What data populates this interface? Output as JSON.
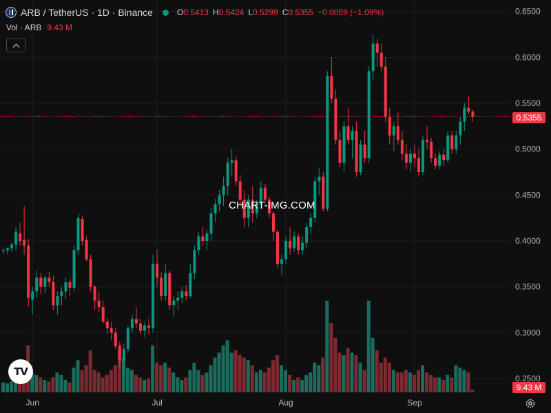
{
  "header": {
    "title": "ARB / TetherUS · 1D · Binance",
    "ohlc": [
      {
        "k": "O",
        "v": "0.5413"
      },
      {
        "k": "H",
        "v": "0.5424"
      },
      {
        "k": "L",
        "v": "0.5299"
      },
      {
        "k": "C",
        "v": "0.5355"
      },
      {
        "k": "",
        "v": "−0.0059 (−1.09%)"
      }
    ]
  },
  "volume": {
    "label": "Vol · ARB",
    "value": "9.43 M"
  },
  "watermark": "CHART-IMG.COM",
  "colors": {
    "up": "#089981",
    "down": "#f23645",
    "up_vol": "#1b6b5f",
    "down_vol": "#7d2a30",
    "grid": "#1e1e1e",
    "background": "#0f0f0f"
  },
  "icons": [
    "arbitrum-logo-icon",
    "market-status-dot-icon",
    "chevron-up-icon",
    "tradingview-logo-icon",
    "gear-icon"
  ],
  "chart_data": {
    "type": "candlestick",
    "symbol": "ARB/USDT",
    "interval": "1D",
    "last_price": "0.5355",
    "last_volume": "9.43 M",
    "x_tick_labels": [
      "Jun",
      "Jul",
      "Aug",
      "Sep"
    ],
    "y_tick_labels": [
      "0.6500",
      "0.6000",
      "0.5500",
      "0.5000",
      "0.4500",
      "0.4000",
      "0.3500",
      "0.3000",
      "0.2500"
    ],
    "ylim": [
      0.2125,
      0.6625
    ],
    "grid": true,
    "candles": [
      [
        0.389,
        0.392,
        0.386,
        0.39,
        0.2
      ],
      [
        0.39,
        0.393,
        0.385,
        0.392,
        0.18
      ],
      [
        0.392,
        0.398,
        0.388,
        0.396,
        0.22
      ],
      [
        0.396,
        0.415,
        0.39,
        0.41,
        0.4
      ],
      [
        0.408,
        0.42,
        0.395,
        0.4,
        0.3
      ],
      [
        0.401,
        0.438,
        0.385,
        0.395,
        0.6
      ],
      [
        0.395,
        0.402,
        0.328,
        0.338,
        0.95
      ],
      [
        0.336,
        0.35,
        0.32,
        0.345,
        0.4
      ],
      [
        0.345,
        0.368,
        0.338,
        0.36,
        0.35
      ],
      [
        0.36,
        0.365,
        0.342,
        0.35,
        0.3
      ],
      [
        0.35,
        0.362,
        0.343,
        0.36,
        0.25
      ],
      [
        0.36,
        0.366,
        0.35,
        0.355,
        0.22
      ],
      [
        0.355,
        0.362,
        0.325,
        0.33,
        0.3
      ],
      [
        0.33,
        0.345,
        0.32,
        0.34,
        0.4
      ],
      [
        0.34,
        0.35,
        0.33,
        0.345,
        0.35
      ],
      [
        0.345,
        0.36,
        0.337,
        0.355,
        0.25
      ],
      [
        0.355,
        0.358,
        0.34,
        0.349,
        0.2
      ],
      [
        0.349,
        0.395,
        0.345,
        0.39,
        0.5
      ],
      [
        0.39,
        0.43,
        0.385,
        0.425,
        0.65
      ],
      [
        0.424,
        0.428,
        0.395,
        0.4,
        0.45
      ],
      [
        0.401,
        0.405,
        0.378,
        0.38,
        0.55
      ],
      [
        0.38,
        0.385,
        0.345,
        0.35,
        0.85
      ],
      [
        0.35,
        0.352,
        0.325,
        0.335,
        0.45
      ],
      [
        0.335,
        0.345,
        0.322,
        0.328,
        0.4
      ],
      [
        0.328,
        0.335,
        0.31,
        0.312,
        0.3
      ],
      [
        0.312,
        0.316,
        0.298,
        0.305,
        0.35
      ],
      [
        0.305,
        0.312,
        0.292,
        0.3,
        0.45
      ],
      [
        0.3,
        0.305,
        0.282,
        0.285,
        0.55
      ],
      [
        0.286,
        0.29,
        0.262,
        0.27,
        0.85
      ],
      [
        0.27,
        0.288,
        0.255,
        0.282,
        0.7
      ],
      [
        0.282,
        0.308,
        0.278,
        0.305,
        0.5
      ],
      [
        0.305,
        0.32,
        0.3,
        0.315,
        0.45
      ],
      [
        0.315,
        0.328,
        0.305,
        0.31,
        0.35
      ],
      [
        0.31,
        0.315,
        0.298,
        0.302,
        0.3
      ],
      [
        0.302,
        0.312,
        0.295,
        0.308,
        0.25
      ],
      [
        0.308,
        0.315,
        0.298,
        0.305,
        0.28
      ],
      [
        0.305,
        0.385,
        0.3,
        0.375,
        0.95
      ],
      [
        0.375,
        0.39,
        0.35,
        0.36,
        0.6
      ],
      [
        0.36,
        0.366,
        0.335,
        0.34,
        0.55
      ],
      [
        0.34,
        0.375,
        0.335,
        0.365,
        0.6
      ],
      [
        0.365,
        0.368,
        0.325,
        0.33,
        0.5
      ],
      [
        0.33,
        0.34,
        0.318,
        0.335,
        0.4
      ],
      [
        0.335,
        0.345,
        0.325,
        0.338,
        0.3
      ],
      [
        0.338,
        0.35,
        0.332,
        0.345,
        0.25
      ],
      [
        0.345,
        0.352,
        0.335,
        0.34,
        0.3
      ],
      [
        0.34,
        0.375,
        0.338,
        0.365,
        0.45
      ],
      [
        0.365,
        0.395,
        0.358,
        0.39,
        0.6
      ],
      [
        0.39,
        0.41,
        0.385,
        0.405,
        0.45
      ],
      [
        0.405,
        0.415,
        0.395,
        0.4,
        0.35
      ],
      [
        0.4,
        0.412,
        0.39,
        0.408,
        0.4
      ],
      [
        0.408,
        0.436,
        0.4,
        0.43,
        0.55
      ],
      [
        0.43,
        0.446,
        0.42,
        0.44,
        0.7
      ],
      [
        0.44,
        0.456,
        0.432,
        0.45,
        0.8
      ],
      [
        0.45,
        0.47,
        0.438,
        0.46,
        0.95
      ],
      [
        0.46,
        0.49,
        0.45,
        0.485,
        1.05
      ],
      [
        0.485,
        0.5,
        0.47,
        0.488,
        0.8
      ],
      [
        0.488,
        0.492,
        0.46,
        0.465,
        0.85
      ],
      [
        0.465,
        0.472,
        0.44,
        0.445,
        0.75
      ],
      [
        0.445,
        0.455,
        0.415,
        0.425,
        0.7
      ],
      [
        0.425,
        0.45,
        0.415,
        0.445,
        0.65
      ],
      [
        0.445,
        0.46,
        0.42,
        0.43,
        0.55
      ],
      [
        0.43,
        0.445,
        0.425,
        0.44,
        0.4
      ],
      [
        0.44,
        0.465,
        0.435,
        0.458,
        0.45
      ],
      [
        0.458,
        0.462,
        0.44,
        0.445,
        0.4
      ],
      [
        0.445,
        0.448,
        0.425,
        0.43,
        0.5
      ],
      [
        0.43,
        0.432,
        0.4,
        0.41,
        0.65
      ],
      [
        0.41,
        0.412,
        0.37,
        0.375,
        0.75
      ],
      [
        0.375,
        0.385,
        0.362,
        0.38,
        0.55
      ],
      [
        0.38,
        0.405,
        0.375,
        0.4,
        0.45
      ],
      [
        0.4,
        0.415,
        0.385,
        0.392,
        0.35
      ],
      [
        0.392,
        0.41,
        0.388,
        0.405,
        0.25
      ],
      [
        0.405,
        0.408,
        0.385,
        0.39,
        0.3
      ],
      [
        0.39,
        0.405,
        0.385,
        0.398,
        0.25
      ],
      [
        0.398,
        0.42,
        0.392,
        0.415,
        0.35
      ],
      [
        0.415,
        0.43,
        0.408,
        0.425,
        0.4
      ],
      [
        0.425,
        0.47,
        0.42,
        0.465,
        0.6
      ],
      [
        0.465,
        0.48,
        0.45,
        0.47,
        0.55
      ],
      [
        0.47,
        0.475,
        0.432,
        0.435,
        0.7
      ],
      [
        0.435,
        0.585,
        0.432,
        0.58,
        1.85
      ],
      [
        0.58,
        0.6,
        0.55,
        0.555,
        1.4
      ],
      [
        0.555,
        0.565,
        0.505,
        0.51,
        1.1
      ],
      [
        0.51,
        0.52,
        0.48,
        0.485,
        0.8
      ],
      [
        0.485,
        0.53,
        0.475,
        0.525,
        0.75
      ],
      [
        0.525,
        0.545,
        0.505,
        0.51,
        0.9
      ],
      [
        0.51,
        0.525,
        0.49,
        0.52,
        0.8
      ],
      [
        0.52,
        0.53,
        0.47,
        0.475,
        0.75
      ],
      [
        0.475,
        0.51,
        0.472,
        0.505,
        0.6
      ],
      [
        0.505,
        0.52,
        0.485,
        0.49,
        0.45
      ],
      [
        0.49,
        0.59,
        0.485,
        0.585,
        1.85
      ],
      [
        0.585,
        0.625,
        0.575,
        0.615,
        1.1
      ],
      [
        0.615,
        0.62,
        0.59,
        0.605,
        0.85
      ],
      [
        0.605,
        0.615,
        0.585,
        0.59,
        0.6
      ],
      [
        0.59,
        0.6,
        0.53,
        0.535,
        0.7
      ],
      [
        0.535,
        0.545,
        0.505,
        0.515,
        0.6
      ],
      [
        0.515,
        0.53,
        0.498,
        0.525,
        0.45
      ],
      [
        0.525,
        0.54,
        0.505,
        0.51,
        0.4
      ],
      [
        0.51,
        0.52,
        0.488,
        0.495,
        0.4
      ],
      [
        0.495,
        0.505,
        0.478,
        0.485,
        0.45
      ],
      [
        0.485,
        0.5,
        0.475,
        0.495,
        0.4
      ],
      [
        0.495,
        0.505,
        0.48,
        0.49,
        0.35
      ],
      [
        0.49,
        0.5,
        0.47,
        0.475,
        0.45
      ],
      [
        0.475,
        0.515,
        0.472,
        0.51,
        0.55
      ],
      [
        0.51,
        0.525,
        0.5,
        0.508,
        0.4
      ],
      [
        0.508,
        0.512,
        0.485,
        0.49,
        0.35
      ],
      [
        0.49,
        0.495,
        0.478,
        0.482,
        0.3
      ],
      [
        0.482,
        0.498,
        0.478,
        0.494,
        0.3
      ],
      [
        0.494,
        0.5,
        0.482,
        0.488,
        0.25
      ],
      [
        0.488,
        0.52,
        0.485,
        0.515,
        0.35
      ],
      [
        0.515,
        0.52,
        0.495,
        0.5,
        0.3
      ],
      [
        0.5,
        0.52,
        0.495,
        0.515,
        0.55
      ],
      [
        0.515,
        0.535,
        0.505,
        0.53,
        0.5
      ],
      [
        0.53,
        0.55,
        0.52,
        0.545,
        0.45
      ],
      [
        0.545,
        0.558,
        0.538,
        0.541,
        0.4
      ],
      [
        0.541,
        0.5424,
        0.5299,
        0.5355,
        0.05
      ]
    ]
  }
}
